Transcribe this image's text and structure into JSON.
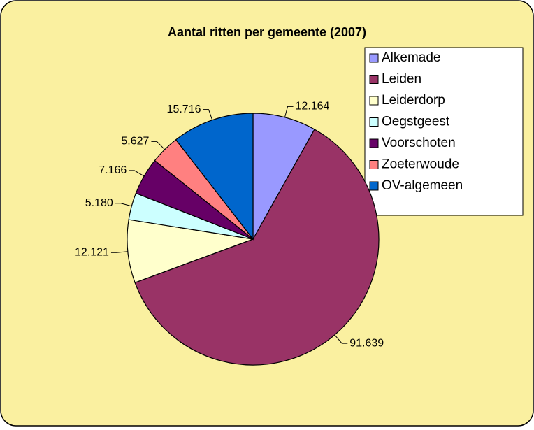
{
  "chart_data": {
    "type": "pie",
    "title": "Aantal ritten per gemeente (2007)",
    "categories": [
      "Alkemade",
      "Leiden",
      "Leiderdorp",
      "Oegstgeest",
      "Voorschoten",
      "Zoeterwoude",
      "OV-algemeen"
    ],
    "values": [
      12164,
      91639,
      12121,
      5180,
      7166,
      5627,
      15716
    ],
    "value_labels": [
      "12.164",
      "91.639",
      "12.121",
      "5.180",
      "7.166",
      "5.627",
      "15.716"
    ],
    "colors": [
      "#9999ff",
      "#993366",
      "#ffffcc",
      "#ccffff",
      "#660066",
      "#ff8080",
      "#0066cc"
    ],
    "legend": "right"
  }
}
